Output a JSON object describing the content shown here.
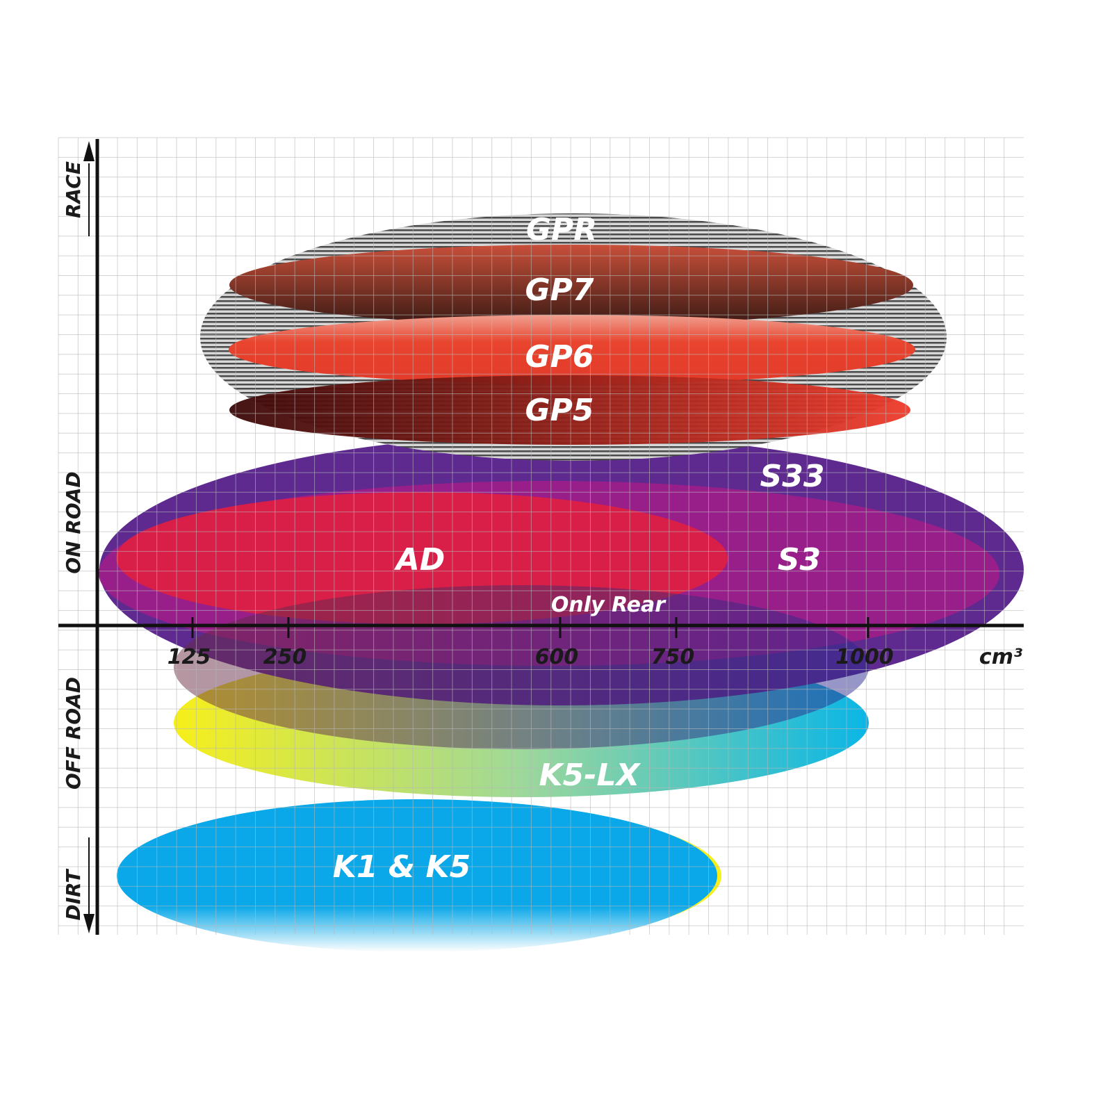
{
  "chart_data": {
    "type": "range-ellipse",
    "xlabel": "cm³",
    "x_ticks": [
      "125",
      "250",
      "600",
      "750",
      "1000"
    ],
    "y_categories": [
      "RACE",
      "ON ROAD",
      "OFF ROAD",
      "DIRT"
    ],
    "grid": true,
    "series": [
      {
        "name": "GPR",
        "color": "#9a9a9a"
      },
      {
        "name": "GP7",
        "color": "#b5432e"
      },
      {
        "name": "GP6",
        "color": "#e8442e"
      },
      {
        "name": "GP5",
        "color": "#c0201c"
      },
      {
        "name": "S33",
        "color": "#5e2a8f"
      },
      {
        "name": "S3",
        "color": "#9b1f8a"
      },
      {
        "name": "AD",
        "color": "#dc1f45"
      },
      {
        "name": "Only Rear",
        "color": "#7a2a6a"
      },
      {
        "name": "K5-LX",
        "color": "#f7ef1a"
      },
      {
        "name": "K1 & K5",
        "color": "#0aa8e8"
      }
    ]
  }
}
